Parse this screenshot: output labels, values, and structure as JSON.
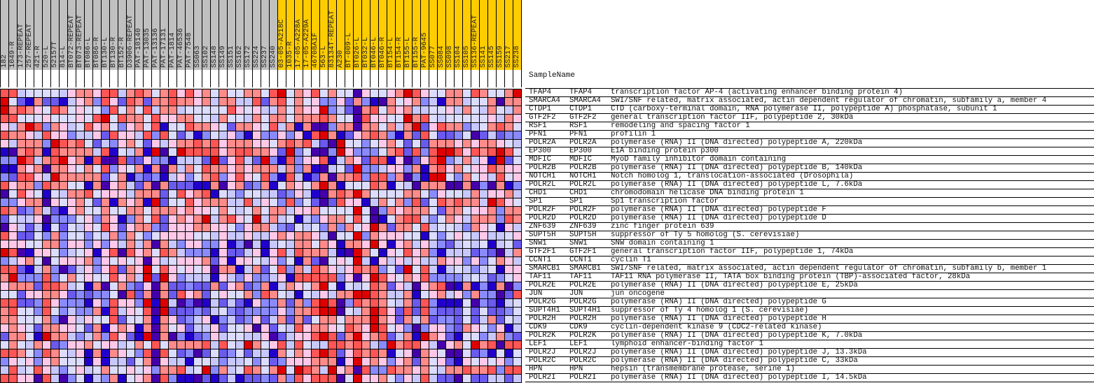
{
  "chart_data": {
    "type": "heatmap",
    "header_label": "SampleName",
    "column_groups": [
      {
        "color": "#c0c0c0",
        "columns": [
          "182",
          "1049-R",
          "173-REPEAT",
          "257-REPEAT",
          "421-R",
          "520-L",
          "52157T",
          "814-L",
          "BT072-REPEAT",
          "BT073-REPEAT",
          "BT086-L",
          "BT086-R",
          "BT130-L",
          "BT130-R",
          "BT152-R",
          "D3906-REPEAT",
          "PAT-10140",
          "PAT-13035",
          "PAT-13136",
          "PAT-17131",
          "PAT-1814",
          "PAT-46536",
          "PAT-7548",
          "SS063",
          "SS102",
          "SS148",
          "SS149",
          "SS151",
          "SS162",
          "SS172",
          "SS224",
          "SS237",
          "SS240"
        ]
      },
      {
        "color": "#ffcc00",
        "columns": [
          "03-05-A218C",
          "1035-R",
          "17-05-A228A",
          "17-05-A229A",
          "46708A1F",
          "563-L",
          "83134T-REPEAT",
          "A230",
          "BT-009-L",
          "BT026-L",
          "BT032-L",
          "BT046-L",
          "BT046-R",
          "BT154-L",
          "BT154-R",
          "BT155-L",
          "BT155-R",
          "PAT-9645",
          "SS077",
          "SS084",
          "SS098",
          "SS104",
          "SS105",
          "SS136-REPEAT",
          "SS141",
          "SS145",
          "SS159",
          "SS217",
          "SS238"
        ]
      }
    ],
    "color_scale": [
      "#2200cc",
      "#4400aa",
      "#6a5aee",
      "#8a8aff",
      "#c8c8ff",
      "#dcdcff",
      "#ffc8e8",
      "#ff8a8a",
      "#ff5555",
      "#dd0000"
    ],
    "value_encoding": "each character is an expression level 0 (lowest, dark blue) to 9 (highest, dark red)",
    "rows": [
      {
        "name": "TFAP4",
        "symbol": "TFAP4",
        "desc": "transcription factor AP-4 (activating enhancer binding protein 4)",
        "values": "88455554677688478757868675755775895768575516556798655775875579"
      },
      {
        "name": "SMARCA4",
        "symbol": "SMARCA4",
        "desc": "SWI/SNF related, matrix associated, actin dependent regulator of chromatin, subfamily a, member 4",
        "values": "95207220467386287277877674774482785756336273017567340774557177"
      },
      {
        "name": "CTDP1",
        "symbol": "CTDP1",
        "desc": "CTD (carboxy-terminal domain, RNA polymerase II, polypeptide A) phosphatase, subunit 1",
        "values": "97876587565538575847745555586564475766934217857674455647547547"
      },
      {
        "name": "GTF2F2",
        "symbol": "GTF2F2",
        "desc": "general transcription factor IIF, polypeptide 2, 30kDa",
        "values": "88555655565895877586677554755475775777875518665597854555556476"
      },
      {
        "name": "RSF1",
        "symbol": "RSF1",
        "desc": "remodeling and spacing factor 1",
        "values": "64798376458675367580558776527765847071137717757479268773457875"
      },
      {
        "name": "PFN1",
        "symbol": "PFN1",
        "desc": "profilin 1",
        "values": "87764866344628664838524035463063363608970267873072852235124233"
      },
      {
        "name": "POLR2A",
        "symbol": "POLR2A",
        "desc": "polymerase (RNA) II (DNA directed) polypeptide A, 220kDa",
        "values": "64777398785243675264677878677766578784219553567525277767677654"
      },
      {
        "name": "EP300",
        "symbol": "EP300",
        "desc": "E1A binding protein p300",
        "values": "01787087777480547091598888678877629351139633357828389986878985"
      },
      {
        "name": "MDFIC",
        "symbol": "MDFIC",
        "desc": "MyoD family inhibitor domain containing",
        "values": "33984789670811822633044429268429308366804762880612689347460925"
      },
      {
        "name": "POLR2B",
        "symbol": "POLR2B",
        "desc": "polymerase (RNA) II (DNA directed) polypeptide B, 140kDa",
        "values": "00767177657583657071747587767677747370145293346637078675668766"
      },
      {
        "name": "NOTCH1",
        "symbol": "NOTCH1",
        "desc": "Notch homolog 1, translocation-associated (Drosophila)",
        "values": "32886497777725703230463578368658308402717783883713099537564856"
      },
      {
        "name": "POLR2L",
        "symbol": "POLR2L",
        "desc": "polymerase (RNA) II (DNA directed) polypeptide L, 7.6kDa",
        "values": "86773877550716742717222007167237057657970555870541777117131703"
      },
      {
        "name": "CHD1",
        "symbol": "CHD1",
        "desc": "chromodomain helicase DNA binding protein 1",
        "values": "15865054778566647772586780543554423640178797555577536554746674"
      },
      {
        "name": "SP1",
        "symbol": "SP1",
        "desc": "Sp1 transcription factor",
        "values": "33677165675270767092558677744846538352128660475738258787749865"
      },
      {
        "name": "POLR2F",
        "symbol": "POLR2F",
        "desc": "polymerase (RNA) II (DNA directed) polypeptide F",
        "values": "87237420675575577577767665754575774667555595137677752775667377"
      },
      {
        "name": "POLR2D",
        "symbol": "POLR2D",
        "desc": "polymerase (RNA) II (DNA directed) polypeptide D",
        "values": "25446133356376037582676794786594745043677585105788435764777387"
      },
      {
        "name": "ZNF639",
        "symbol": "ZNF639",
        "desc": "zinc finger protein 639",
        "values": "16424052546586267732666776653677432545373756972775845543765064"
      },
      {
        "name": "SUPT5H",
        "symbol": "SUPT5H",
        "desc": "suppressor of Ty 5 homolog (S. cerevisiae)",
        "values": "86225373553547375356666554644644676776415593766655053565464456"
      },
      {
        "name": "SNW1",
        "symbol": "SNW1",
        "desc": "SNW domain containing 1",
        "values": "66655773663636474717436633603140454775760776960674643245450452"
      },
      {
        "name": "GTF2F1",
        "symbol": "GTF2F1",
        "desc": "general transcription factor IIF, polypeptide 1, 74kDa",
        "values": "98106653456068186758743330622460684877740197506586730444232147"
      },
      {
        "name": "CCNT1",
        "symbol": "CCNT1",
        "desc": "cyclin T1",
        "values": "34675156667365656164566672606654635072156594064646447663635764"
      },
      {
        "name": "SMARCB1",
        "symbol": "SMARCB1",
        "desc": "SWI/SNF related, matrix associated, actin dependent regulator of chromatin, subfamily b, member 1",
        "values": "88204731246368276958656561770472583748764687835295840454345066"
      },
      {
        "name": "TAF11",
        "symbol": "TAF11",
        "desc": "TAF11 RNA polymerase II, TATA box binding protein (TBP)-associated factor, 28kDa",
        "values": "79333835756558674929634440643633460888883616986576833334542356"
      },
      {
        "name": "POLR2E",
        "symbol": "POLR2E",
        "desc": "polymerase (RNA) II (DNA directed) polypeptide E, 25kDa",
        "values": "67772887450715732617223227267237047657950545872641678107030713"
      },
      {
        "name": "JUN",
        "symbol": "JUN",
        "desc": "jun oncogene",
        "values": "55266776232335182717286725655738754054647799874470567463733128"
      },
      {
        "name": "POLR2G",
        "symbol": "POLR2G",
        "desc": "polymerase (RNA) II (DNA directed) polypeptide G",
        "values": "88223863330638663909412104242063372738981387875472830005132045"
      },
      {
        "name": "SUPT4H1",
        "symbol": "SUPT4H1",
        "desc": "suppressor of Ty 4 homolog 1 (S. cerevisiae)",
        "values": "78553853433708465819222324532333363778991547986282832225252235"
      },
      {
        "name": "POLR2H",
        "symbol": "POLR2H",
        "desc": "polymerase (RNA) II (DNA directed) polypeptide H",
        "values": "77555731646558255707623460342362472725775777976274723325247254"
      },
      {
        "name": "CDK9",
        "symbol": "CDK9",
        "desc": "cyclin-dependent kinase 9 (CDC2-related kinase)",
        "values": "67652776652706760717562446255616254867765876985631366327653604"
      },
      {
        "name": "POLR2K",
        "symbol": "POLR2K",
        "desc": "polymerase (RNA) II (DNA directed) polypeptide K, 7.0kDa",
        "values": "27750977434738620917130236455446124668982796782470976205534732"
      },
      {
        "name": "LEF1",
        "symbol": "LEF1",
        "desc": "lymphoid enhancer-binding factor 1",
        "values": "57547623667566457585777784854975684854488787439788641675978188"
      },
      {
        "name": "POLR2J",
        "symbol": "POLR2J",
        "desc": "polymerase (RNA) II (DNA directed) polypeptide J, 13.3kDa",
        "values": "88753875460707653818523125235244075768982687870561765115230505"
      },
      {
        "name": "POLR2C",
        "symbol": "POLR2C",
        "desc": "polymerase (RNA) II (DNA directed) polypeptide C, 33kDa",
        "values": "36563675550604425716440554344535236667770696763672756206565635"
      },
      {
        "name": "HPN",
        "symbol": "HPN",
        "desc": "hepsin (transmembrane protease, serine 1)",
        "values": "48458643564575565637784593745875795987496718338776754778778388"
      },
      {
        "name": "POLR2I",
        "symbol": "POLR2I",
        "desc": "polymerase (RNA) II (DNA directed) polypeptide I, 14.5kDa",
        "values": "88661841350437056718300120240223273868881596675364842215224424"
      }
    ]
  }
}
